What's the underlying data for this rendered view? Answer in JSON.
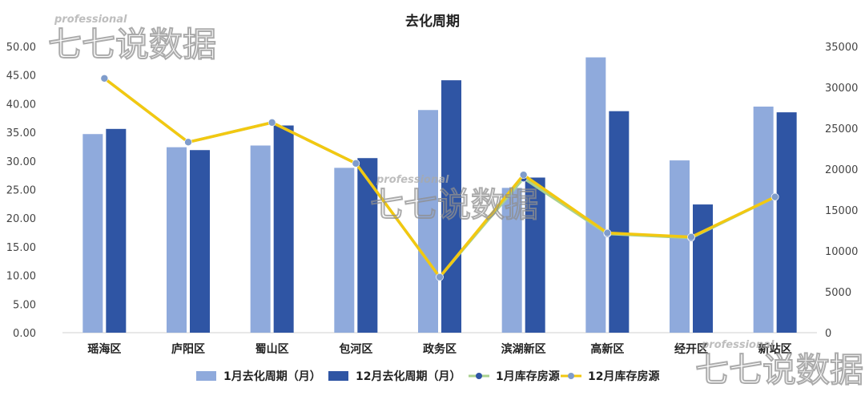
{
  "watermark": {
    "small": "professional",
    "big": "七七说数据"
  },
  "chart_data": {
    "type": "bar+line",
    "title": "去化周期",
    "categories": [
      "瑶海区",
      "庐阳区",
      "蜀山区",
      "包河区",
      "政务区",
      "滨湖新区",
      "高新区",
      "经开区",
      "新站区"
    ],
    "series": [
      {
        "name": "1月去化周期（月）",
        "type": "bar",
        "axis": "left",
        "color": "#8FAADC",
        "values": [
          34.7,
          32.4,
          32.7,
          28.8,
          38.9,
          25.3,
          48.1,
          30.1,
          39.5
        ]
      },
      {
        "name": "12月去化周期（月）",
        "type": "bar",
        "axis": "left",
        "color": "#2F55A4",
        "values": [
          35.6,
          31.9,
          36.2,
          30.5,
          44.1,
          27.1,
          38.7,
          22.4,
          38.5
        ]
      },
      {
        "name": "1月库存房源",
        "type": "line",
        "axis": "right",
        "color": "#A9D18E",
        "marker_color": "#2F55A4",
        "values": [
          31100,
          23300,
          25700,
          20700,
          6800,
          18900,
          12100,
          11600,
          16600
        ]
      },
      {
        "name": "12月库存房源",
        "type": "line",
        "axis": "right",
        "color": "#F2C811",
        "marker_color": "#7F9CCB",
        "values": [
          31100,
          23300,
          25700,
          20700,
          6800,
          19300,
          12200,
          11700,
          16600
        ]
      }
    ],
    "y_left": {
      "min": 0,
      "max": 50,
      "step": 5,
      "tick_labels": [
        "0.00",
        "5.00",
        "10.00",
        "15.00",
        "20.00",
        "25.00",
        "30.00",
        "35.00",
        "40.00",
        "45.00",
        "50.00"
      ]
    },
    "y_right": {
      "min": 0,
      "max": 35000,
      "step": 5000,
      "tick_labels": [
        "0",
        "5000",
        "10000",
        "15000",
        "20000",
        "25000",
        "30000",
        "35000"
      ]
    },
    "legend": "bottom",
    "grid": false
  }
}
